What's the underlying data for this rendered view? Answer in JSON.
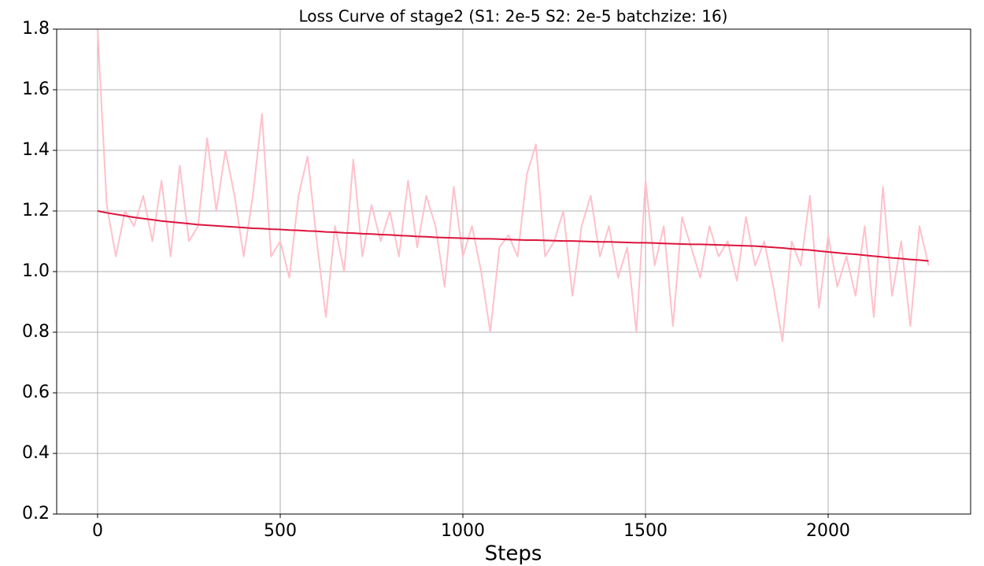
{
  "chart_data": {
    "type": "line",
    "title": "Loss Curve of stage2 (S1: 2e-5 S2: 2e-5 batchzize: 16)",
    "x_label": "Steps",
    "x": [
      0,
      25,
      50,
      75,
      100,
      125,
      150,
      175,
      200,
      225,
      250,
      275,
      300,
      325,
      350,
      375,
      400,
      425,
      450,
      475,
      500,
      525,
      550,
      575,
      600,
      625,
      650,
      675,
      700,
      725,
      750,
      775,
      800,
      825,
      850,
      875,
      900,
      925,
      950,
      975,
      1000,
      1025,
      1050,
      1075,
      1100,
      1125,
      1150,
      1175,
      1200,
      1225,
      1250,
      1275,
      1300,
      1325,
      1350,
      1375,
      1400,
      1425,
      1450,
      1475,
      1500,
      1525,
      1550,
      1575,
      1600,
      1625,
      1650,
      1675,
      1700,
      1725,
      1750,
      1775,
      1800,
      1825,
      1850,
      1875,
      1900,
      1925,
      1950,
      1975,
      2000,
      2025,
      2050,
      2075,
      2100,
      2125,
      2150,
      2175,
      2200,
      2225,
      2250,
      2275
    ],
    "series": [
      {
        "color": "#ffc0cb",
        "values": [
          1.8,
          1.22,
          1.05,
          1.2,
          1.15,
          1.25,
          1.1,
          1.3,
          1.05,
          1.35,
          1.1,
          1.15,
          1.44,
          1.2,
          1.4,
          1.25,
          1.05,
          1.25,
          1.52,
          1.05,
          1.1,
          0.98,
          1.25,
          1.38,
          1.1,
          0.85,
          1.15,
          1.0,
          1.37,
          1.05,
          1.22,
          1.1,
          1.2,
          1.05,
          1.3,
          1.08,
          1.25,
          1.15,
          0.95,
          1.28,
          1.05,
          1.15,
          1.0,
          0.8,
          1.08,
          1.12,
          1.05,
          1.32,
          1.42,
          1.05,
          1.1,
          1.2,
          0.92,
          1.15,
          1.25,
          1.05,
          1.15,
          0.98,
          1.08,
          0.8,
          1.3,
          1.02,
          1.15,
          0.82,
          1.18,
          1.08,
          0.98,
          1.15,
          1.05,
          1.1,
          0.97,
          1.18,
          1.02,
          1.1,
          0.95,
          0.77,
          1.1,
          1.02,
          1.25,
          0.88,
          1.12,
          0.95,
          1.05,
          0.92,
          1.15,
          0.85,
          1.28,
          0.92,
          1.1,
          0.82,
          1.15,
          1.02
        ]
      },
      {
        "color": "#dc143c",
        "values": [
          1.2,
          1.194,
          1.189,
          1.184,
          1.179,
          1.175,
          1.171,
          1.167,
          1.164,
          1.161,
          1.158,
          1.155,
          1.153,
          1.151,
          1.149,
          1.147,
          1.145,
          1.143,
          1.142,
          1.14,
          1.139,
          1.137,
          1.136,
          1.134,
          1.133,
          1.131,
          1.13,
          1.128,
          1.127,
          1.125,
          1.124,
          1.122,
          1.121,
          1.119,
          1.118,
          1.116,
          1.115,
          1.113,
          1.112,
          1.111,
          1.11,
          1.109,
          1.108,
          1.108,
          1.107,
          1.106,
          1.105,
          1.104,
          1.104,
          1.103,
          1.102,
          1.101,
          1.101,
          1.1,
          1.099,
          1.098,
          1.098,
          1.097,
          1.096,
          1.095,
          1.095,
          1.094,
          1.093,
          1.092,
          1.091,
          1.09,
          1.09,
          1.089,
          1.088,
          1.087,
          1.086,
          1.085,
          1.084,
          1.082,
          1.08,
          1.078,
          1.075,
          1.073,
          1.071,
          1.068,
          1.065,
          1.062,
          1.059,
          1.057,
          1.054,
          1.051,
          1.048,
          1.045,
          1.043,
          1.04,
          1.038,
          1.035
        ]
      }
    ],
    "xlim": [
      -112,
      2390
    ],
    "xticks": [
      0,
      500,
      1000,
      1500,
      2000
    ],
    "ylim": [
      0.2,
      1.8
    ],
    "yticks": [
      0.2,
      0.4,
      0.6,
      0.8,
      {
        "value": 1,
        "label": "1.0"
      },
      1.2,
      1.4,
      1.6,
      1.8
    ],
    "grid": true
  }
}
